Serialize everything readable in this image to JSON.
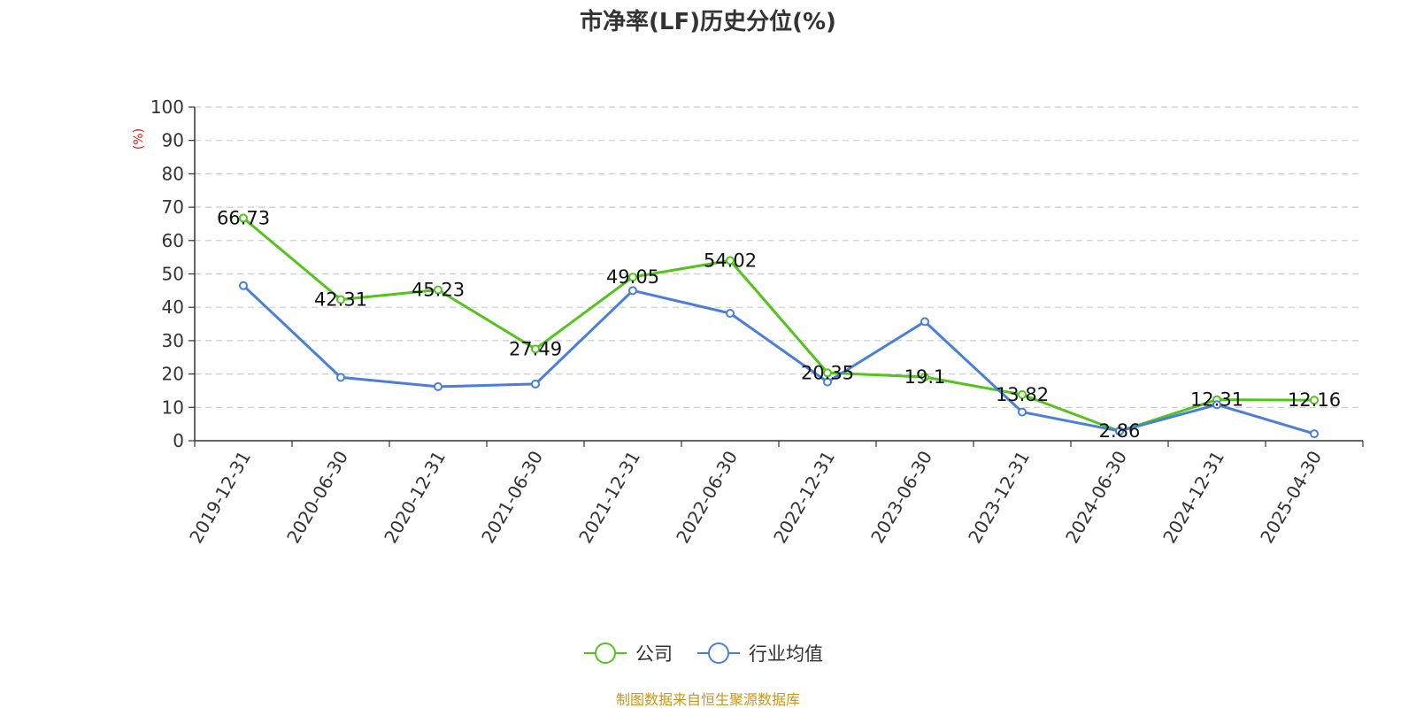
{
  "chart_data": {
    "type": "line",
    "title": "市净率(LF)历史分位(%)",
    "ylabel": "(%)",
    "ylim": [
      0,
      100
    ],
    "yticks": [
      "0",
      "10",
      "20",
      "30",
      "40",
      "50",
      "60",
      "70",
      "80",
      "90",
      "100"
    ],
    "grid": true,
    "legend_position": "bottom",
    "categories": [
      "2019-12-31",
      "2020-06-30",
      "2020-12-31",
      "2021-06-30",
      "2021-12-31",
      "2022-06-30",
      "2022-12-31",
      "2023-06-30",
      "2023-12-31",
      "2024-06-30",
      "2024-12-31",
      "2025-04-30"
    ],
    "series": [
      {
        "name": "公司",
        "color": "#52c41a",
        "values": [
          66.73,
          42.31,
          45.23,
          27.49,
          49.05,
          54.02,
          20.35,
          19.1,
          13.82,
          2.86,
          12.31,
          12.16
        ],
        "labels": [
          "66.73",
          "42.31",
          "45.23",
          "27.49",
          "49.05",
          "54.02",
          "20.35",
          "19.1",
          "13.82",
          "2.86",
          "12.31",
          "12.16"
        ]
      },
      {
        "name": "行业均值",
        "color": "#4a7fd9",
        "values": [
          46.5,
          19.0,
          16.2,
          17.0,
          45.0,
          38.2,
          17.6,
          35.7,
          8.6,
          2.9,
          10.8,
          2.1
        ]
      }
    ],
    "source": "制图数据来自恒生聚源数据库"
  }
}
